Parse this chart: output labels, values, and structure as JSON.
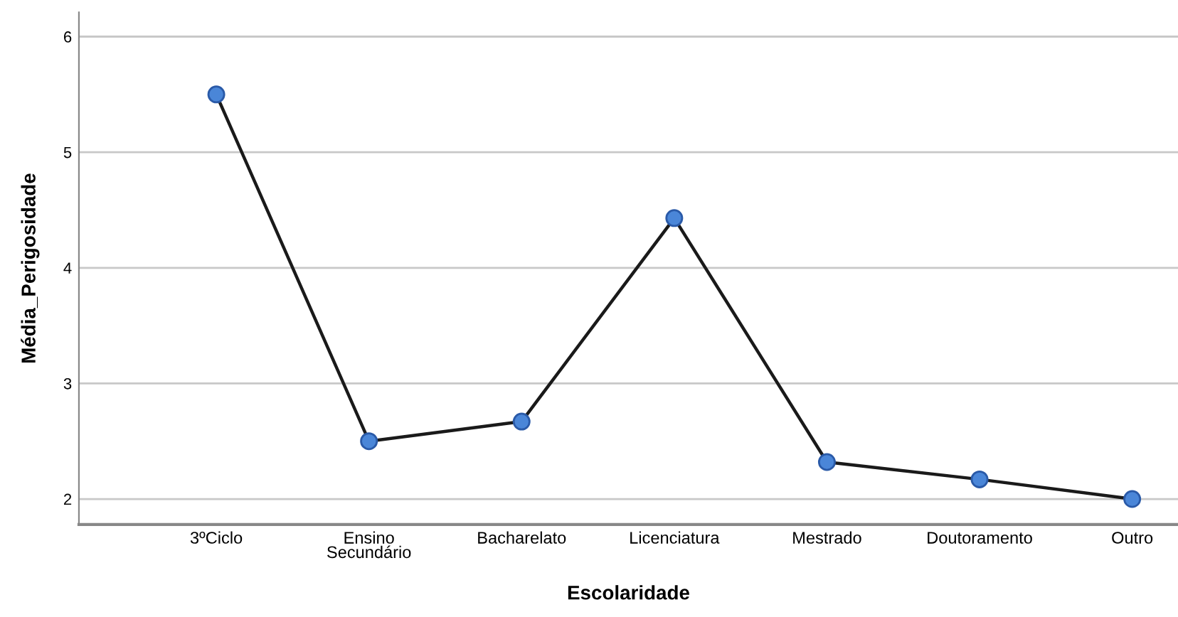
{
  "chart_data": {
    "type": "line",
    "xlabel": "Escolaridade",
    "ylabel": "Média_Perigosidade",
    "categories": [
      "3ºCiclo",
      "Ensino\nSecundário",
      "Bacharelato",
      "Licenciatura",
      "Mestrado",
      "Doutoramento",
      "Outro"
    ],
    "series": [
      {
        "color": "#4a86d8",
        "values": [
          5.5,
          2.5,
          2.67,
          4.43,
          2.32,
          2.17,
          2.0
        ]
      }
    ],
    "ylim": [
      1.78,
      6.21
    ],
    "yticks": [
      2,
      3,
      4,
      5,
      6
    ],
    "grid": "y",
    "marker": "circle",
    "line_style": "solid"
  }
}
